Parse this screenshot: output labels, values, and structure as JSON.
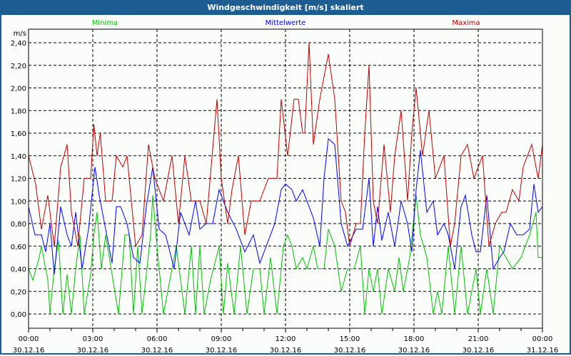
{
  "chart_data": {
    "type": "line",
    "title": "Windgeschwindigkeit [m/s] skaliert",
    "ylabel": "m/s",
    "xlabel": "",
    "ylim": [
      0,
      2.4
    ],
    "xlim_hours": [
      0,
      24
    ],
    "grid": true,
    "legend_placement": "top",
    "y_ticks": [
      "0,00",
      "0,20",
      "0,40",
      "0,60",
      "0,80",
      "1,00",
      "1,20",
      "1,40",
      "1,60",
      "1,80",
      "2,00",
      "2,20",
      "2,40"
    ],
    "x_ticks": [
      {
        "time": "00:00",
        "date": "30.12.16"
      },
      {
        "time": "03:00",
        "date": "30.12.16"
      },
      {
        "time": "06:00",
        "date": "30.12.16"
      },
      {
        "time": "09:00",
        "date": "30.12.16"
      },
      {
        "time": "12:00",
        "date": "30.12.16"
      },
      {
        "time": "15:00",
        "date": "30.12.16"
      },
      {
        "time": "18:00",
        "date": "30.12.16"
      },
      {
        "time": "21:00",
        "date": "30.12.16"
      },
      {
        "time": "00:00",
        "date": "31.12.16"
      }
    ],
    "series": [
      {
        "name": "Minima",
        "color": "#00c000",
        "x": [
          0,
          0.2,
          0.5,
          0.6,
          0.9,
          1.0,
          1.2,
          1.4,
          1.6,
          1.8,
          2.0,
          2.2,
          2.4,
          2.6,
          2.9,
          3.05,
          3.2,
          3.4,
          3.6,
          3.9,
          4.2,
          4.5,
          4.7,
          4.9,
          5.1,
          5.3,
          5.5,
          5.7,
          5.8,
          6.0,
          6.3,
          6.6,
          6.9,
          7.3,
          7.6,
          7.8,
          8.0,
          8.2,
          8.5,
          8.9,
          9.1,
          9.3,
          9.6,
          9.9,
          10.2,
          10.5,
          10.8,
          11.0,
          11.3,
          11.6,
          11.9,
          12.1,
          12.3,
          12.5,
          12.8,
          13.0,
          13.3,
          13.5,
          13.8,
          14.0,
          14.3,
          14.6,
          14.9,
          15.2,
          15.5,
          15.7,
          15.9,
          16.1,
          16.3,
          16.5,
          16.8,
          17.1,
          17.3,
          17.5,
          17.8,
          18.1,
          18.3,
          18.6,
          18.9,
          19.1,
          19.3,
          19.6,
          19.9,
          20.2,
          20.5,
          20.9,
          21.1,
          21.4,
          21.7,
          22.0,
          22.3,
          22.6,
          23.0,
          23.4,
          23.7,
          23.8,
          24
        ],
        "y": [
          0.4,
          0.3,
          0.5,
          0.6,
          0.3,
          0.0,
          0.4,
          0.65,
          0.0,
          0.35,
          0.0,
          0.4,
          0.7,
          0.0,
          0.35,
          0.7,
          0.9,
          0.4,
          0.7,
          0.35,
          0.0,
          0.7,
          0.7,
          0.0,
          0.6,
          0.0,
          0.35,
          0.7,
          1.05,
          0.6,
          0.0,
          0.3,
          0.6,
          0.0,
          0.6,
          0.0,
          0.6,
          0.0,
          0.3,
          0.6,
          0.0,
          0.45,
          0.0,
          0.6,
          0.0,
          0.4,
          0.4,
          0.0,
          0.5,
          0.0,
          0.6,
          0.7,
          0.6,
          0.4,
          0.5,
          0.4,
          0.6,
          0.4,
          0.4,
          0.75,
          0.6,
          0.2,
          0.4,
          0.4,
          0.6,
          0.0,
          0.4,
          0.2,
          0.4,
          0.0,
          0.4,
          0.2,
          0.5,
          0.2,
          0.5,
          1.05,
          0.7,
          0.5,
          0.0,
          0.2,
          0.0,
          0.6,
          0.0,
          0.6,
          0.0,
          0.4,
          0.0,
          0.4,
          0.0,
          0.6,
          0.5,
          0.4,
          0.5,
          0.7,
          0.9,
          0.5,
          0.5
        ]
      },
      {
        "name": "Mittelwerte",
        "color": "#0000ff",
        "x": [
          0,
          0.3,
          0.6,
          0.8,
          1.0,
          1.2,
          1.5,
          1.8,
          2.0,
          2.2,
          2.5,
          2.8,
          3.1,
          3.3,
          3.6,
          3.9,
          4.1,
          4.3,
          4.6,
          4.9,
          5.2,
          5.5,
          5.8,
          6.1,
          6.4,
          6.8,
          7.1,
          7.5,
          7.8,
          8.0,
          8.3,
          8.6,
          8.9,
          9.3,
          9.7,
          10.1,
          10.5,
          10.8,
          11.1,
          11.5,
          11.8,
          12.0,
          12.3,
          12.5,
          12.8,
          13.0,
          13.3,
          13.6,
          13.8,
          14.0,
          14.3,
          14.6,
          14.9,
          15.3,
          15.6,
          15.9,
          16.1,
          16.3,
          16.5,
          16.8,
          17.1,
          17.4,
          17.7,
          17.9,
          18.1,
          18.3,
          18.6,
          18.9,
          19.1,
          19.4,
          19.6,
          19.9,
          20.2,
          20.4,
          20.7,
          20.9,
          21.1,
          21.4,
          21.7,
          22.0,
          22.2,
          22.5,
          22.8,
          23.1,
          23.4,
          23.6,
          23.8,
          24
        ],
        "y": [
          0.95,
          0.7,
          0.7,
          0.55,
          0.8,
          0.35,
          0.95,
          0.7,
          0.6,
          0.9,
          0.4,
          0.75,
          1.3,
          1.05,
          0.75,
          0.45,
          0.95,
          0.95,
          0.8,
          0.5,
          0.45,
          0.95,
          1.3,
          0.75,
          0.7,
          0.4,
          0.9,
          0.7,
          1.0,
          0.75,
          0.8,
          0.8,
          1.1,
          0.9,
          0.75,
          0.55,
          0.7,
          0.45,
          0.6,
          0.8,
          1.1,
          1.15,
          1.1,
          1.0,
          1.1,
          1.0,
          0.85,
          0.6,
          1.2,
          1.55,
          1.5,
          0.8,
          0.6,
          0.75,
          0.75,
          1.2,
          0.6,
          0.95,
          0.65,
          0.9,
          0.6,
          1.0,
          0.8,
          0.55,
          1.1,
          1.45,
          0.9,
          1.0,
          0.7,
          0.8,
          0.7,
          0.4,
          0.95,
          1.05,
          0.7,
          0.55,
          0.55,
          1.05,
          0.4,
          0.5,
          0.55,
          0.8,
          0.7,
          0.7,
          0.75,
          1.15,
          0.9,
          0.95
        ]
      },
      {
        "name": "Maxima",
        "color": "#c00000",
        "x": [
          0,
          0.33,
          0.6,
          0.9,
          1.2,
          1.5,
          1.8,
          2.0,
          2.3,
          2.6,
          2.9,
          3.05,
          3.2,
          3.35,
          3.6,
          3.9,
          4.1,
          4.4,
          4.6,
          5.0,
          5.3,
          5.6,
          5.9,
          6.3,
          6.7,
          7.0,
          7.3,
          7.6,
          8.0,
          8.3,
          8.8,
          9.0,
          9.3,
          9.5,
          9.8,
          10.1,
          10.4,
          10.8,
          11.2,
          11.6,
          11.8,
          12.1,
          12.4,
          12.6,
          12.8,
          12.9,
          13.1,
          13.3,
          13.6,
          14.0,
          14.3,
          14.6,
          14.8,
          15.0,
          15.3,
          15.5,
          15.7,
          15.9,
          16.1,
          16.3,
          16.6,
          16.9,
          17.1,
          17.4,
          17.7,
          17.9,
          18.1,
          18.4,
          18.7,
          19.0,
          19.4,
          19.7,
          19.9,
          20.2,
          20.5,
          20.8,
          21.2,
          21.5,
          21.8,
          22.1,
          22.3,
          22.6,
          22.9,
          23.1,
          23.5,
          23.8,
          24
        ],
        "y": [
          1.4,
          1.15,
          0.75,
          1.05,
          0.6,
          1.3,
          1.5,
          0.9,
          0.6,
          1.2,
          1.2,
          1.68,
          1.4,
          1.6,
          1.0,
          1.0,
          1.4,
          1.3,
          1.4,
          0.6,
          0.7,
          1.5,
          1.2,
          1.0,
          1.4,
          0.8,
          1.4,
          1.0,
          1.0,
          0.8,
          1.9,
          1.2,
          0.8,
          1.1,
          1.4,
          0.7,
          1.0,
          1.0,
          1.2,
          1.2,
          1.9,
          1.4,
          1.9,
          1.9,
          1.6,
          1.6,
          2.4,
          1.5,
          1.9,
          2.3,
          1.9,
          1.0,
          0.9,
          0.6,
          0.8,
          0.8,
          1.6,
          2.2,
          1.0,
          0.8,
          1.5,
          0.9,
          1.4,
          1.8,
          1.0,
          1.6,
          2.0,
          1.4,
          1.8,
          1.2,
          1.4,
          0.6,
          0.8,
          1.4,
          1.5,
          1.2,
          1.4,
          0.6,
          0.8,
          0.9,
          0.9,
          1.1,
          1.0,
          1.3,
          1.5,
          1.2,
          1.5
        ]
      }
    ]
  }
}
